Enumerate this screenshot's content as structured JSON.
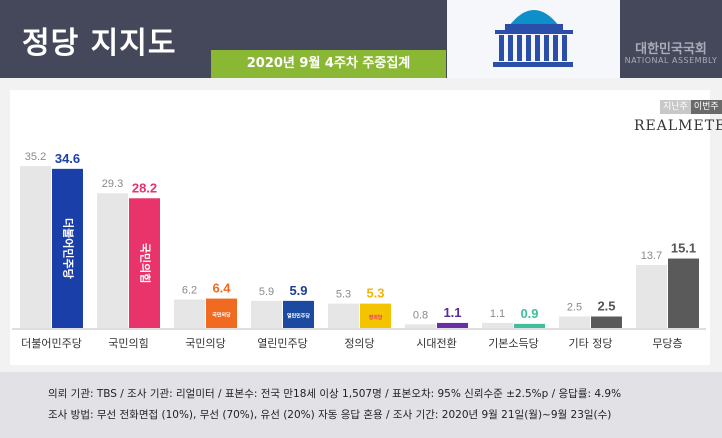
{
  "header": {
    "title": "정당 지지도",
    "subtitle": "2020년 9월 4주차 주중집계",
    "assembly_ko": "대한민국국회",
    "assembly_en": "NATIONAL ASSEMBLY"
  },
  "legend": {
    "prev": "지난주",
    "curr": "이번주"
  },
  "brand": "REALMETER",
  "colors": {
    "prev_bar": "#e6e6e6",
    "header_bg": "#44485a",
    "subtitle_bg": "#8bb834"
  },
  "chart_data": {
    "type": "bar",
    "categories": [
      "더불어민주당",
      "국민의힘",
      "국민의당",
      "열린민주당",
      "정의당",
      "시대전환",
      "기본소득당",
      "기타 정당",
      "무당층"
    ],
    "series": [
      {
        "name": "지난주",
        "values": [
          35.2,
          29.3,
          6.2,
          5.9,
          5.3,
          0.8,
          1.1,
          2.5,
          13.7
        ]
      },
      {
        "name": "이번주",
        "values": [
          34.6,
          28.2,
          6.4,
          5.9,
          5.3,
          1.1,
          0.9,
          2.5,
          15.1
        ]
      }
    ],
    "current_colors": [
      "#1a3fa8",
      "#e8336b",
      "#f06b21",
      "#1b4aa0",
      "#f5c400",
      "#6a2fa6",
      "#3fbf9b",
      "#5a5a5a",
      "#5a5a5a"
    ],
    "current_label_colors": [
      "#1a3fa8",
      "#e8336b",
      "#f06b21",
      "#1b3f8f",
      "#f5b400",
      "#5a2a9a",
      "#3fbf9b",
      "#555555",
      "#555555"
    ],
    "bar_inner_labels": [
      "더불어민주당",
      "국민의힘",
      "국민의당",
      "열린민주당",
      "정의당",
      "",
      "",
      "",
      ""
    ],
    "ylim": [
      0,
      40
    ]
  },
  "footer": {
    "note1": "의뢰 기관: TBS / 조사 기관: 리얼미터 / 표본수: 전국 만18세 이상 1,507명 / 표본오차: 95% 신뢰수준 ±2.5%p / 응답률: 4.9%",
    "note2": "조사 방법: 무선 전화면접 (10%), 무선 (70%), 유선 (20%) 자동 응답 혼용 / 조사 기간: 2020년 9월 21일(월)~9월 23일(수)"
  }
}
